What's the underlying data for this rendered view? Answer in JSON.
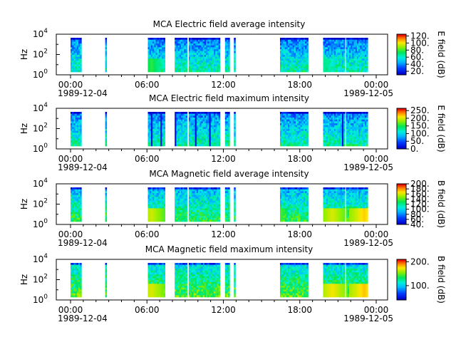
{
  "chart_data": [
    {
      "type": "heatmap",
      "title": "MCA  Electric field average intensity",
      "ylabel": "Hz",
      "yscale": "log",
      "ylim_exponent": [
        0,
        4
      ],
      "ytick_labels": [
        [
          "10",
          "0"
        ],
        [
          "10",
          "2"
        ],
        [
          "10",
          "4"
        ]
      ],
      "xtick_labels": [
        "00:00",
        "06:00",
        "12:00",
        "18:00",
        "00:00"
      ],
      "xdates": [
        "1989-12-04",
        "1989-12-05"
      ],
      "x_range_hours": [
        0,
        24
      ],
      "colorbar": {
        "label": "E field (dB)",
        "range": [
          10,
          125
        ],
        "tick_values": [
          20,
          40,
          60,
          80,
          100,
          120
        ],
        "tick_labels": [
          "20.",
          "40.",
          "60.",
          "80.",
          "100.",
          "120."
        ],
        "colormap": "rainbow"
      },
      "base_dB": 50,
      "peaks": [
        [
          6.3,
          78
        ],
        [
          20.0,
          68
        ]
      ]
    },
    {
      "type": "heatmap",
      "title": "MCA  Electric field maximum intensity",
      "ylabel": "Hz",
      "yscale": "log",
      "ylim_exponent": [
        0,
        4
      ],
      "ytick_labels": [
        [
          "10",
          "0"
        ],
        [
          "10",
          "2"
        ],
        [
          "10",
          "4"
        ]
      ],
      "xtick_labels": [
        "00:00",
        "06:00",
        "12:00",
        "18:00",
        "00:00"
      ],
      "xdates": [
        "1989-12-04",
        "1989-12-05"
      ],
      "x_range_hours": [
        0,
        24
      ],
      "colorbar": {
        "label": "E field (dB)",
        "range": [
          0,
          265
        ],
        "tick_values": [
          0,
          50,
          100,
          150,
          200,
          250
        ],
        "tick_labels": [
          "0.",
          "50.",
          "100.",
          "150.",
          "200.",
          "250."
        ],
        "colormap": "rainbow"
      },
      "base_dB": 95,
      "peaks": []
    },
    {
      "type": "heatmap",
      "title": "MCA  Magnetic field average intensity",
      "ylabel": "Hz",
      "yscale": "log",
      "ylim_exponent": [
        0,
        4
      ],
      "ytick_labels": [
        [
          "10",
          "0"
        ],
        [
          "10",
          "2"
        ],
        [
          "10",
          "4"
        ]
      ],
      "xtick_labels": [
        "00:00",
        "06:00",
        "12:00",
        "18:00",
        "00:00"
      ],
      "xdates": [
        "1989-12-04",
        "1989-12-05"
      ],
      "x_range_hours": [
        0,
        24
      ],
      "colorbar": {
        "label": "B field (dB)",
        "range": [
          40,
          200
        ],
        "tick_values": [
          40,
          60,
          80,
          100,
          120,
          140,
          160,
          180,
          200
        ],
        "tick_labels": [
          "40.",
          "60.",
          "80.",
          "100.",
          "120.",
          "140.",
          "160.",
          "180.",
          "200."
        ],
        "colormap": "rainbow"
      },
      "base_dB": 110,
      "peaks": [
        [
          6.3,
          160
        ],
        [
          15.8,
          150
        ],
        [
          20.5,
          162
        ],
        [
          23.0,
          172
        ]
      ]
    },
    {
      "type": "heatmap",
      "title": "MCA  Magnetic field maximum intensity",
      "ylabel": "Hz",
      "yscale": "log",
      "ylim_exponent": [
        0,
        4
      ],
      "ytick_labels": [
        [
          "10",
          "0"
        ],
        [
          "10",
          "2"
        ],
        [
          "10",
          "4"
        ]
      ],
      "xtick_labels": [
        "00:00",
        "06:00",
        "12:00",
        "18:00",
        "00:00"
      ],
      "xdates": [
        "1989-12-04",
        "1989-12-05"
      ],
      "x_range_hours": [
        0,
        24
      ],
      "colorbar": {
        "label": "B field (dB)",
        "range": [
          40,
          210
        ],
        "tick_values": [
          100,
          200
        ],
        "tick_labels": [
          "100.",
          "200."
        ],
        "colormap": "rainbow"
      },
      "base_dB": 125,
      "peaks": [
        [
          6.3,
          170
        ],
        [
          20.5,
          175
        ],
        [
          23.0,
          182
        ]
      ]
    }
  ],
  "data_segments_hours": [
    [
      0.0,
      0.85
    ],
    [
      2.72,
      2.8
    ],
    [
      6.07,
      7.37
    ],
    [
      8.18,
      9.05
    ],
    [
      9.28,
      11.72
    ],
    [
      12.13,
      12.38
    ],
    [
      12.83,
      12.93
    ],
    [
      16.45,
      18.62
    ],
    [
      19.83,
      21.48
    ],
    [
      21.62,
      23.33
    ]
  ]
}
